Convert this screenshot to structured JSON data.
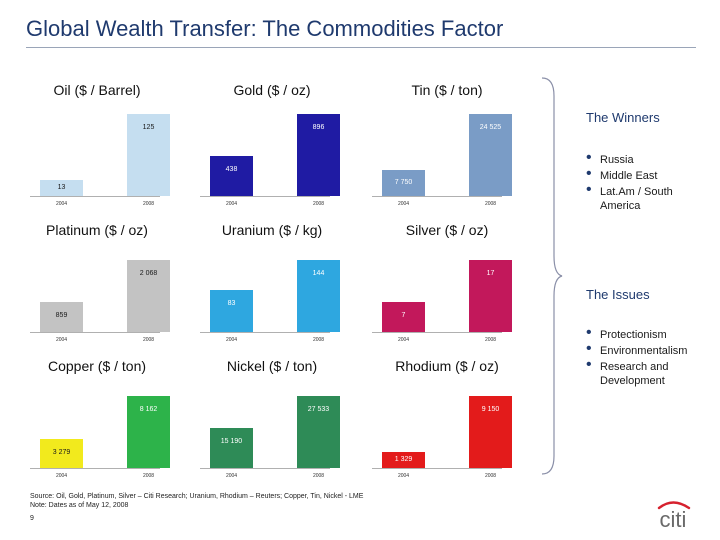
{
  "title": "Global Wealth Transfer: The Commodities Factor",
  "charts": [
    {
      "title": "Oil ($ / Barrel)",
      "years": [
        "2004",
        "2008"
      ],
      "labels": [
        "13",
        "125"
      ],
      "values": [
        13,
        125
      ],
      "colors": [
        "#c5def0",
        "#c5def0"
      ]
    },
    {
      "title": "Gold ($ / oz)",
      "years": [
        "2004",
        "2008"
      ],
      "labels": [
        "438",
        "896"
      ],
      "values": [
        438,
        896
      ],
      "colors": [
        "#1f1ba3",
        "#1f1ba3"
      ]
    },
    {
      "title": "Tin ($ / ton)",
      "years": [
        "2004",
        "2008"
      ],
      "labels": [
        "7 750",
        "24 525"
      ],
      "values": [
        7750,
        24525
      ],
      "colors": [
        "#7a9cc6",
        "#7a9cc6"
      ]
    },
    {
      "title": "Platinum ($ / oz)",
      "years": [
        "2004",
        "2008"
      ],
      "labels": [
        "859",
        "2 068"
      ],
      "values": [
        859,
        2068
      ],
      "colors": [
        "#c3c3c3",
        "#c3c3c3"
      ]
    },
    {
      "title": "Uranium ($ / kg)",
      "years": [
        "2004",
        "2008"
      ],
      "labels": [
        "83",
        "144"
      ],
      "values": [
        83,
        144
      ],
      "colors": [
        "#2ea7e0",
        "#2ea7e0"
      ]
    },
    {
      "title": "Silver ($ / oz)",
      "years": [
        "2004",
        "2008"
      ],
      "labels": [
        "7",
        "17"
      ],
      "values": [
        7,
        17
      ],
      "colors": [
        "#c2185b",
        "#c2185b"
      ]
    },
    {
      "title": "Copper ($ / ton)",
      "years": [
        "2004",
        "2008"
      ],
      "labels": [
        "3 279",
        "8 162"
      ],
      "values": [
        3279,
        8162
      ],
      "colors": [
        "#f2ea1d",
        "#2db34a"
      ]
    },
    {
      "title": "Nickel ($ / ton)",
      "years": [
        "2004",
        "2008"
      ],
      "labels": [
        "15 190",
        "27 533"
      ],
      "values": [
        15190,
        27533
      ],
      "colors": [
        "#2e8b57",
        "#2e8b57"
      ]
    },
    {
      "title": "Rhodium ($ / oz)",
      "years": [
        "2004",
        "2008"
      ],
      "labels": [
        "1 329",
        "9 150"
      ],
      "values": [
        1329,
        9150
      ],
      "colors": [
        "#e31b1b",
        "#e31b1b"
      ]
    }
  ],
  "winners": {
    "heading": "The Winners",
    "items": [
      "Russia",
      "Middle East",
      "Lat.Am / South America"
    ]
  },
  "issues": {
    "heading": "The Issues",
    "items": [
      "Protectionism",
      "Environmentalism",
      "Research and Development"
    ]
  },
  "source": "Source: Oil, Gold, Platinum, Silver – Citi Research; Uranium, Rhodium – Reuters; Copper, Tin, Nickel - LME",
  "note": "Note: Dates as of May 12, 2008",
  "page_number": "9",
  "logo": "citi"
}
